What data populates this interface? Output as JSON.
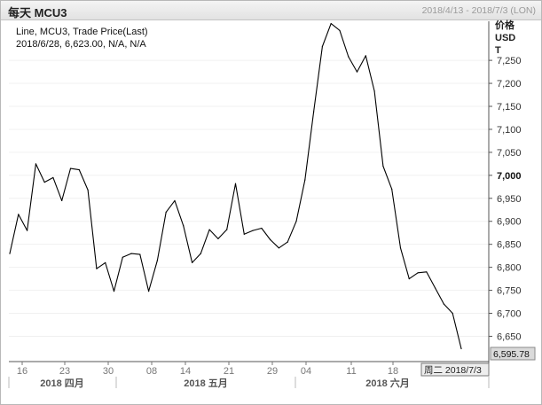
{
  "window": {
    "title": "每天 MCU3",
    "date_range": "2018/4/13 - 2018/7/3 (LON)"
  },
  "info": {
    "line1": "Line, MCU3, Trade Price(Last)",
    "line2": "2018/6/28, 6,623.00, N/A, N/A"
  },
  "axis": {
    "unit_lines": [
      "价格",
      "USD",
      "T"
    ],
    "y_ticks": [
      "7,250",
      "7,200",
      "7,150",
      "7,100",
      "7,050",
      "7,000",
      "6,950",
      "6,900",
      "6,850",
      "6,800",
      "6,750",
      "6,700",
      "6,650"
    ],
    "x_day_ticks": [
      "16",
      "23",
      "30",
      "08",
      "14",
      "21",
      "29",
      "04",
      "11",
      "18"
    ],
    "month_labels": [
      "2018 四月",
      "2018 五月",
      "2018 六月"
    ],
    "cursor_date": "周二 2018/7/3",
    "last_value": "6,595.78"
  },
  "colors": {
    "line": "#000000",
    "gridline": "#f0f0f0",
    "axis": "#555555",
    "titlebar": "#e6e6e6",
    "last_value_box": "#dadada"
  },
  "chart_data": {
    "type": "line",
    "series": [
      {
        "name": "MCU3",
        "values": [
          6830,
          6915,
          6880,
          7025,
          6985,
          6995,
          6945,
          7015,
          7012,
          6968,
          6797,
          6810,
          6748,
          6822,
          6830,
          6828,
          6748,
          6815,
          6920,
          6945,
          6890,
          6810,
          6830,
          6882,
          6862,
          6882,
          6982,
          6872,
          6880,
          6885,
          6860,
          6842,
          6855,
          6900,
          6990,
          7138,
          7280,
          7330,
          7315,
          7258,
          7225,
          7260,
          7183,
          7020,
          6970,
          6842,
          6775,
          6788,
          6790,
          6755,
          6720,
          6700,
          6623
        ]
      }
    ],
    "ylim": [
      6595,
      7335
    ],
    "x_tick_labels": [
      "16",
      "23",
      "30",
      "08",
      "14",
      "21",
      "29",
      "04",
      "11",
      "18"
    ],
    "grid": true
  }
}
